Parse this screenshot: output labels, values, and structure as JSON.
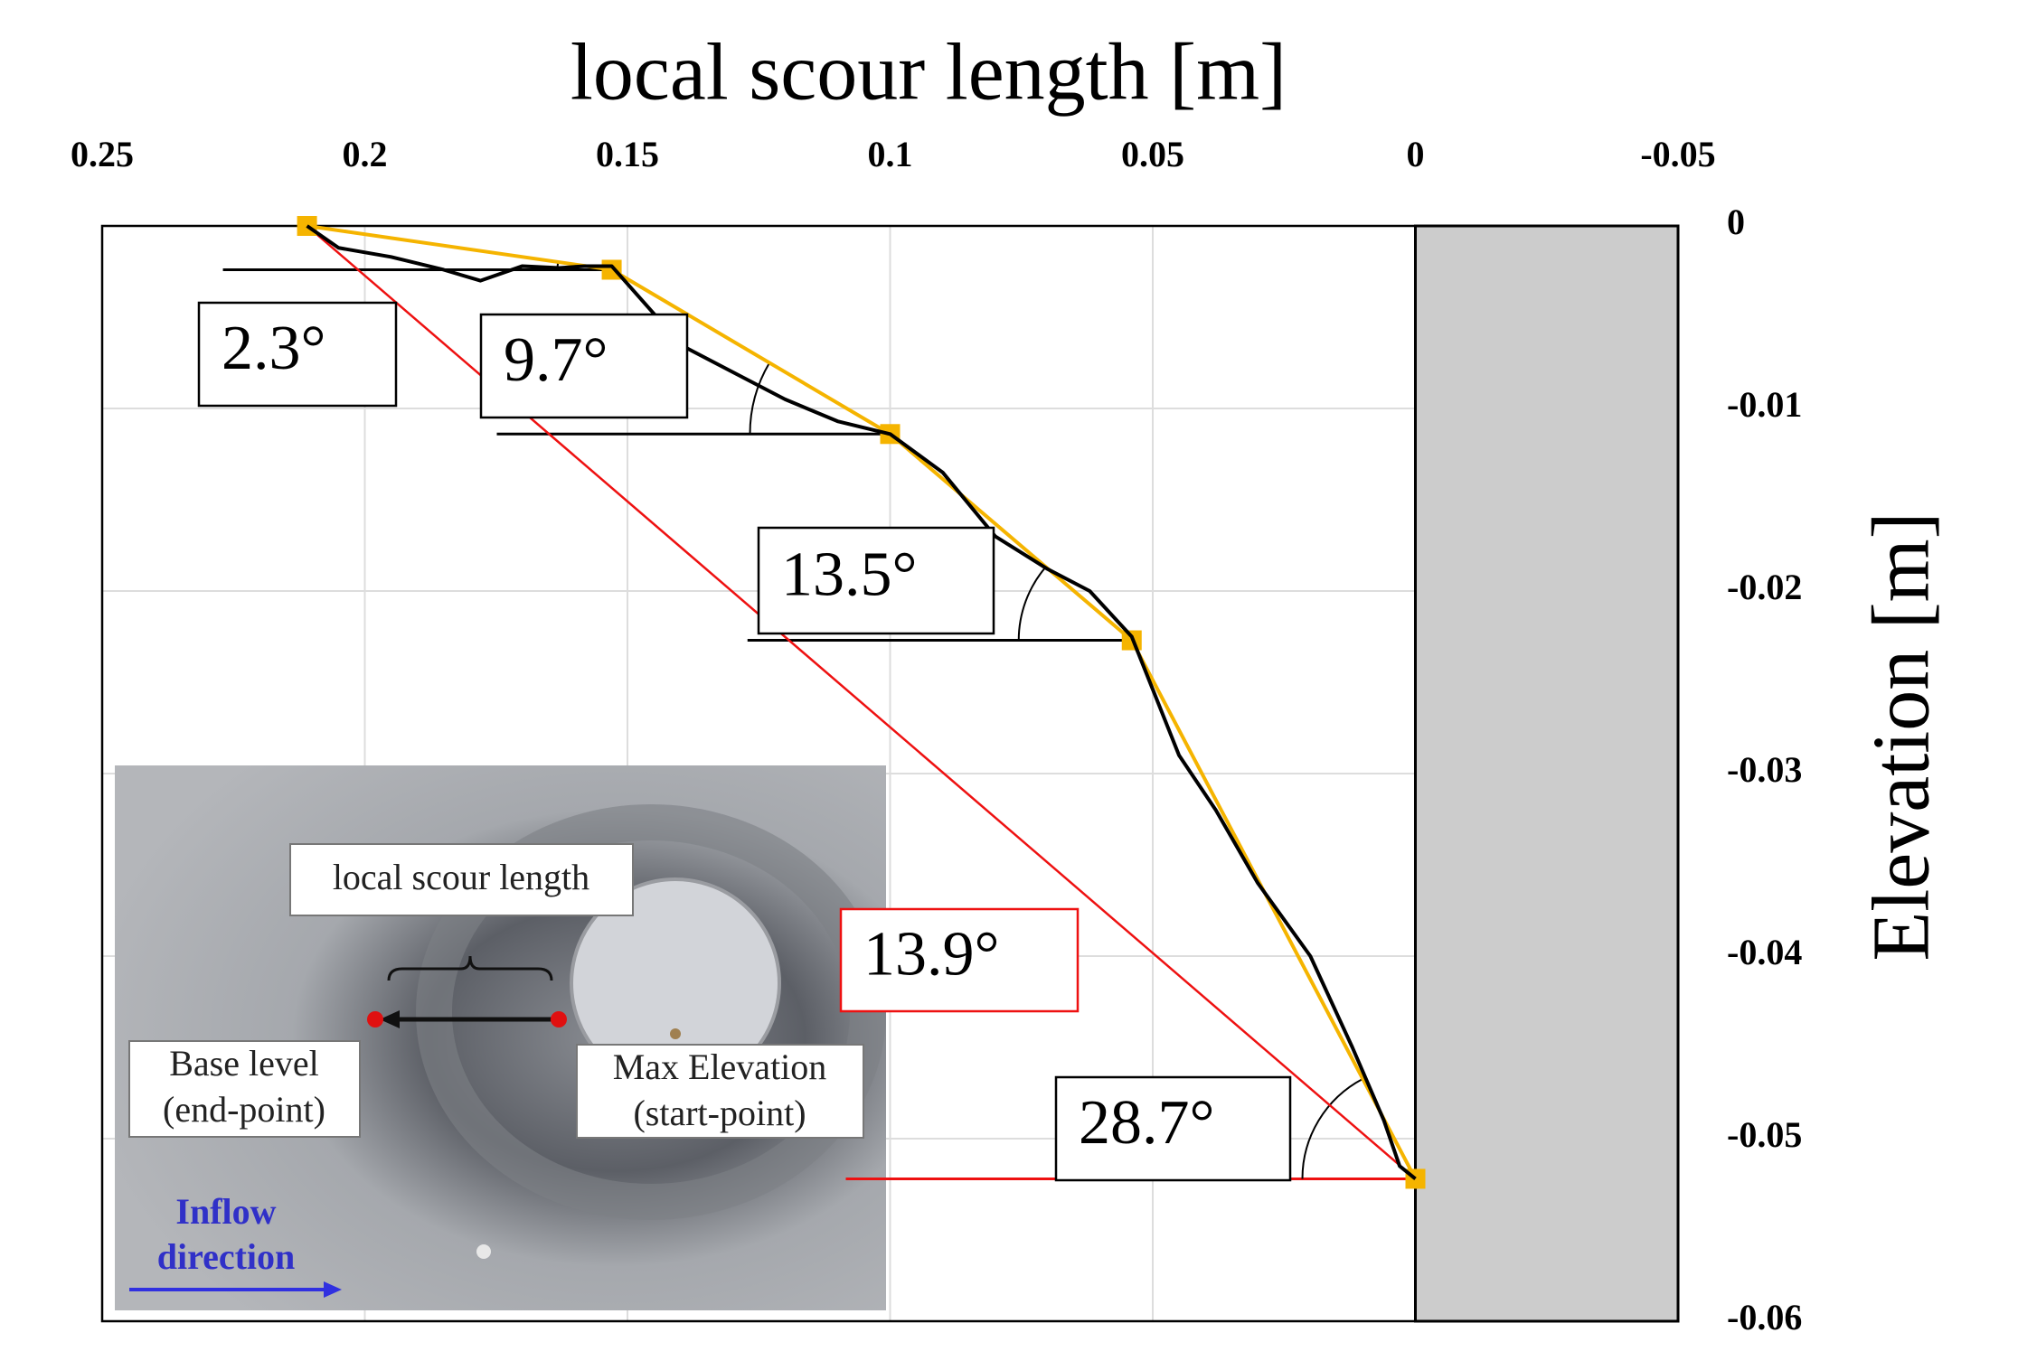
{
  "chart_data": {
    "type": "line",
    "title": "local scour length [m]",
    "y_label": "Elevation [m]",
    "xlim": [
      0.25,
      -0.05
    ],
    "ylim": [
      -0.06,
      0
    ],
    "xticks": [
      0.25,
      0.2,
      0.15,
      0.1,
      0.05,
      0,
      -0.05
    ],
    "yticks": [
      0,
      -0.01,
      -0.02,
      -0.03,
      -0.04,
      -0.05,
      -0.06
    ],
    "grid": true,
    "shaded_xrange": [
      0,
      -0.05
    ],
    "series": [
      {
        "color": "#000000",
        "x": [
          0.211,
          0.205,
          0.195,
          0.185,
          0.178,
          0.17,
          0.163,
          0.158,
          0.153,
          0.145,
          0.14,
          0.13,
          0.12,
          0.11,
          0.1,
          0.09,
          0.08,
          0.07,
          0.062,
          0.054,
          0.045,
          0.038,
          0.03,
          0.02,
          0.012,
          0.006,
          0.003,
          0
        ],
        "values": [
          0,
          -0.0012,
          -0.0017,
          -0.0024,
          -0.003,
          -0.0022,
          -0.0023,
          -0.0022,
          -0.0022,
          -0.0048,
          -0.0065,
          -0.008,
          -0.0095,
          -0.0107,
          -0.0114,
          -0.0135,
          -0.017,
          -0.0188,
          -0.02,
          -0.0225,
          -0.029,
          -0.032,
          -0.036,
          -0.04,
          -0.045,
          -0.049,
          -0.0515,
          -0.0522
        ]
      },
      {
        "color": "#f5b400",
        "markers": true,
        "x": [
          0.211,
          0.153,
          0.1,
          0.054,
          0
        ],
        "values": [
          0,
          -0.0024,
          -0.0114,
          -0.0227,
          -0.0522
        ]
      },
      {
        "color": "#ee1111",
        "x": [
          0.211,
          0
        ],
        "values": [
          0,
          -0.0522
        ]
      }
    ],
    "annotations": [
      "2.3°",
      "9.7°",
      "13.5°",
      "13.9°",
      "28.7°"
    ],
    "inset": {
      "label": "local scour length",
      "end_point": [
        "Base level",
        "(end-point)"
      ],
      "start_point": [
        "Max Elevation",
        "(start-point)"
      ],
      "flow": [
        "Inflow",
        "direction"
      ]
    }
  }
}
